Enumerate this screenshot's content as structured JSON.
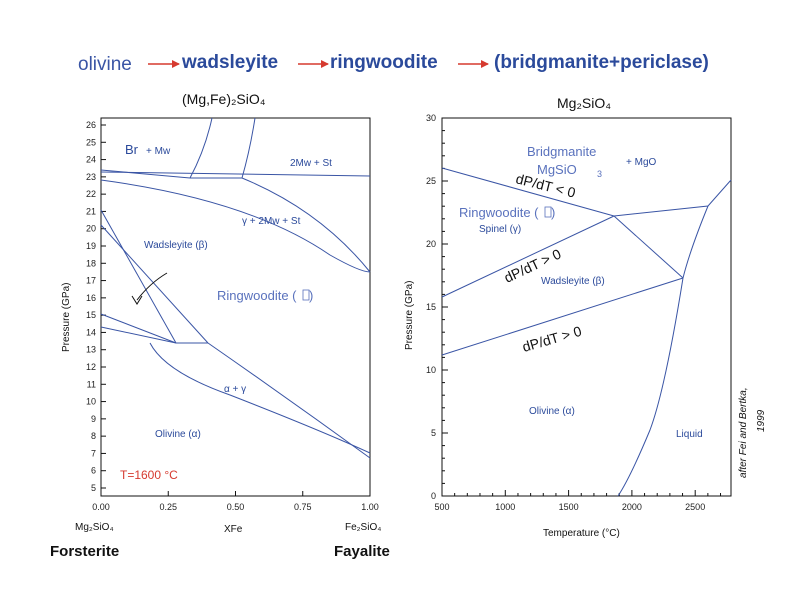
{
  "sequence": {
    "olivine": "olivine",
    "wadsleyite": "wadsleyite",
    "ringwoodite": "ringwoodite",
    "final": "(bridgmanite+periclase)",
    "arrow_color": "#d63a2f"
  },
  "left": {
    "title": "(Mg,Fe)₂SiO₄",
    "y_axis_label": "Pressure (GPa)",
    "x_axis_label": "XFe",
    "x_ticks": [
      "0.00",
      "0.25",
      "0.50",
      "0.75",
      "1.00"
    ],
    "y_ticks": [
      "5",
      "6",
      "7",
      "8",
      "9",
      "10",
      "11",
      "12",
      "13",
      "14",
      "15",
      "16",
      "17",
      "18",
      "19",
      "20",
      "21",
      "22",
      "23",
      "24",
      "25",
      "26"
    ],
    "endmember_left": "Mg₂SiO₄",
    "endmember_right": "Fe₂SiO₄",
    "name_left": "Forsterite",
    "name_right": "Fayalite",
    "labels": {
      "br": "Br",
      "br_mw": "+ Mw",
      "mw_st": "2Mw + St",
      "g_mw_st": "γ + 2Mw + St",
      "wadsleyite": "Wadsleyite (β)",
      "ringwoodite": "Ringwoodite (",
      "alpha_gamma": "α + γ",
      "olivine": "Olivine (α)",
      "temperature": "T=1600 °C"
    }
  },
  "right": {
    "title": "Mg₂SiO₄",
    "y_axis_label": "Pressure (GPa)",
    "x_axis_label": "Temperature (°C)",
    "x_ticks": [
      "500",
      "1000",
      "1500",
      "2000",
      "2500"
    ],
    "y_ticks": [
      "0",
      "5",
      "10",
      "15",
      "20",
      "25",
      "30"
    ],
    "labels": {
      "bridgmanite": "Bridgmanite",
      "mgsio3": "MgSiO",
      "mgsio3_sub": "3",
      "mgo": "+ MgO",
      "dpdt_neg": "dP/dT < 0",
      "ringwoodite": "Ringwoodite (",
      "spinel": "Spinel (γ)",
      "dpdt_pos1": "dP/dT > 0",
      "wadsleyite": "Wadsleyite (β)",
      "dpdt_pos2": "dP/dT > 0",
      "olivine": "Olivine (α)",
      "liquid": "Liquid"
    }
  },
  "citation_line1": "after Fei and Bertka,",
  "citation_line2": "1999"
}
